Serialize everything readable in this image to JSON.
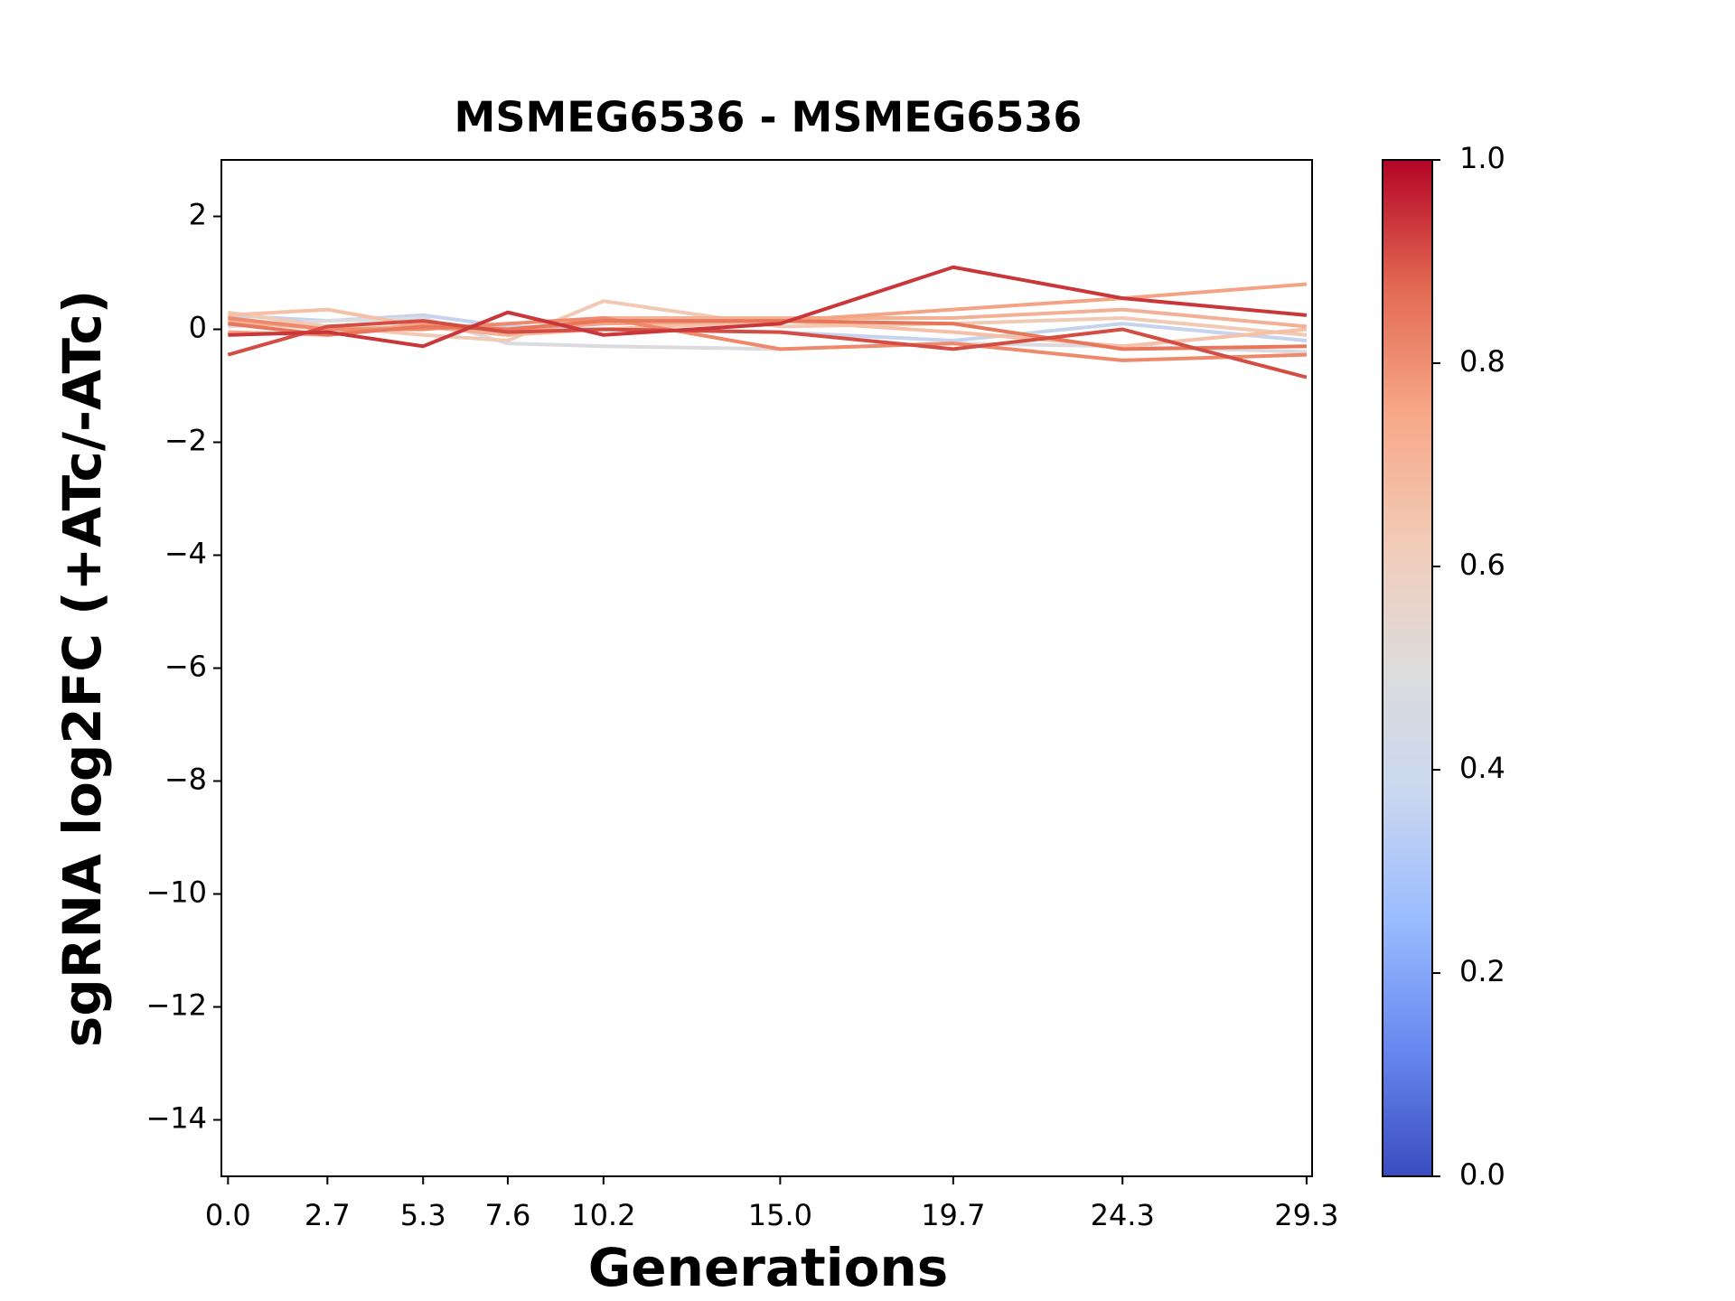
{
  "chart_data": {
    "type": "line",
    "title": "MSMEG6536 - MSMEG6536",
    "x_label": "Generations",
    "y_label": "sgRNA log2FC (+ATc/-ATc)",
    "x": [
      0,
      2.7,
      5.3,
      7.6,
      10.2,
      15,
      19.7,
      24.3,
      29.3
    ],
    "xlim": [
      -0.18,
      29.45
    ],
    "xticks": [
      {
        "value": 0,
        "label": "0.0"
      },
      2.7,
      5.3,
      7.6,
      10.2,
      {
        "value": 15,
        "label": "15.0"
      },
      19.7,
      24.3,
      29.3
    ],
    "ylim": [
      -15,
      3
    ],
    "yticks": [
      2,
      0,
      {
        "value": -2,
        "label": "−2"
      },
      {
        "value": -4,
        "label": "−4"
      },
      {
        "value": -6,
        "label": "−6"
      },
      {
        "value": -8,
        "label": "−8"
      },
      {
        "value": -10,
        "label": "−10"
      },
      {
        "value": -12,
        "label": "−12"
      },
      {
        "value": -14,
        "label": "−14"
      }
    ],
    "series": [
      {
        "color": "#c7d3ec",
        "values": [
          0.25,
          0.15,
          0.25,
          0.05,
          0.0,
          -0.05,
          -0.2,
          0.1,
          -0.2
        ]
      },
      {
        "color": "#dadadf",
        "values": [
          0.05,
          0.15,
          0.2,
          -0.25,
          -0.3,
          -0.35,
          -0.25,
          -0.3,
          -0.4
        ]
      },
      {
        "color": "#f0cab5",
        "values": [
          0.3,
          0.05,
          -0.1,
          -0.2,
          0.5,
          0.05,
          0.1,
          0.2,
          -0.1
        ]
      },
      {
        "color": "#f5c0a6",
        "values": [
          0.25,
          0.35,
          0.05,
          -0.1,
          0.0,
          0.15,
          -0.05,
          -0.3,
          0.0
        ]
      },
      {
        "color": "#f2b194",
        "values": [
          0.15,
          0.0,
          0.05,
          -0.1,
          0.2,
          0.2,
          0.2,
          0.35,
          0.05
        ]
      },
      {
        "color": "#f4a384",
        "values": [
          -0.05,
          -0.1,
          0.1,
          0.0,
          0.1,
          0.15,
          0.35,
          0.55,
          0.8
        ]
      },
      {
        "color": "#ee8a6b",
        "values": [
          0.2,
          0.0,
          0.0,
          0.1,
          0.2,
          -0.35,
          -0.25,
          -0.55,
          -0.45
        ]
      },
      {
        "color": "#e8765a",
        "values": [
          0.1,
          -0.1,
          0.05,
          0.0,
          0.15,
          0.15,
          0.1,
          -0.35,
          -0.3
        ]
      },
      {
        "color": "#d44d43",
        "values": [
          -0.45,
          0.05,
          0.15,
          -0.05,
          0.0,
          -0.05,
          -0.35,
          0.0,
          -0.85
        ]
      },
      {
        "color": "#c9373a",
        "values": [
          -0.1,
          -0.05,
          -0.3,
          0.3,
          -0.1,
          0.1,
          1.1,
          0.55,
          0.25
        ]
      }
    ],
    "colorbar": {
      "lim": [
        0,
        1
      ],
      "ticks": [
        {
          "value": 0,
          "label": "0.0"
        },
        0.2,
        0.4,
        0.6,
        0.8,
        {
          "value": 1,
          "label": "1.0"
        }
      ],
      "colors": [
        "#3b4cc0",
        "#6788ee",
        "#9abbff",
        "#c9d7f0",
        "#dddcdc",
        "#f2cbb7",
        "#f7a889",
        "#e26952",
        "#b40426"
      ]
    }
  }
}
